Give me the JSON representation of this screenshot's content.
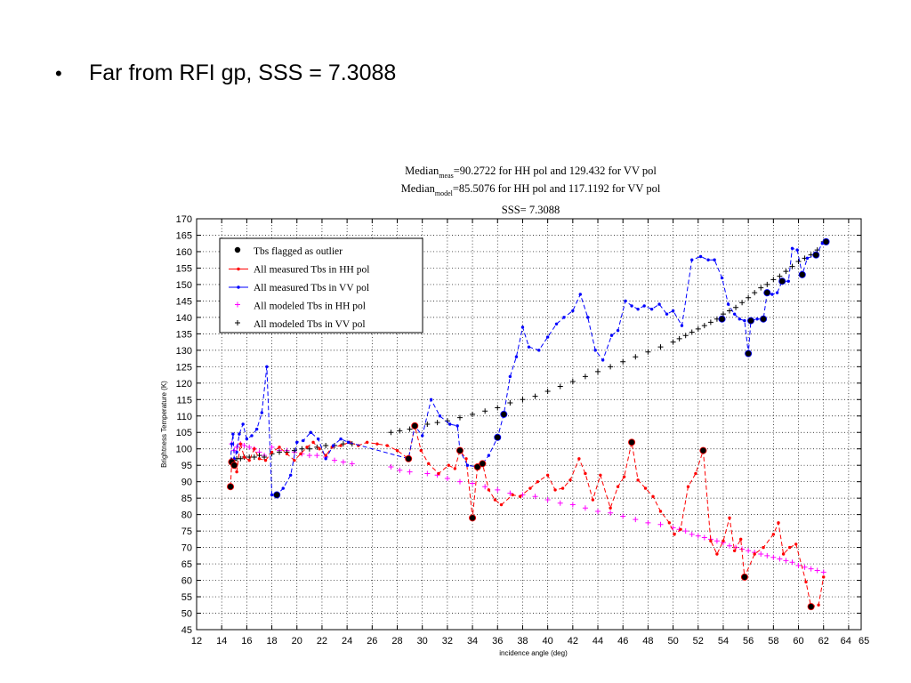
{
  "slide": {
    "bullet": "•",
    "text": "Far from RFI gp, SSS = 7.3088"
  },
  "chart_data": {
    "type": "line",
    "title_lines": [
      {
        "pre": "Median",
        "sub": "meas",
        "post": "=90.2722 for HH pol and 129.432 for VV pol"
      },
      {
        "pre": "Median",
        "sub": "model",
        "post": "=85.5076 for HH pol and 117.1192 for VV pol"
      },
      {
        "pre": "SSS= 7.3088",
        "sub": "",
        "post": ""
      }
    ],
    "xlabel": "incidence angle (deg)",
    "ylabel": "Brightness Temperature (K)",
    "xlim": [
      12,
      65
    ],
    "ylim": [
      45,
      170
    ],
    "xticks": [
      12,
      14,
      16,
      18,
      20,
      22,
      24,
      26,
      28,
      30,
      32,
      34,
      36,
      38,
      40,
      42,
      44,
      46,
      48,
      50,
      52,
      54,
      56,
      58,
      60,
      62,
      64,
      65
    ],
    "xtick_labels": [
      "12",
      "14",
      "16",
      "18",
      "20",
      "22",
      "24",
      "26",
      "28",
      "30",
      "32",
      "34",
      "36",
      "38",
      "40",
      "42",
      "44",
      "46",
      "48",
      "50",
      "52",
      "54",
      "56",
      "58",
      "60",
      "62",
      "64",
      "65"
    ],
    "yticks": [
      45,
      50,
      55,
      60,
      65,
      70,
      75,
      80,
      85,
      90,
      95,
      100,
      105,
      110,
      115,
      120,
      125,
      130,
      135,
      140,
      145,
      150,
      155,
      160,
      165,
      170
    ],
    "grid": true,
    "legend_position": "top-left",
    "colors": {
      "hh_meas": "#ff0000",
      "vv_meas": "#0000ff",
      "hh_model": "#ff00ff",
      "vv_model": "#000000",
      "outlier": "#000000"
    },
    "series": [
      {
        "name": "Tbs flagged as outlier",
        "kind": "outlier",
        "points": [
          [
            14.7,
            88.5
          ],
          [
            14.8,
            96
          ],
          [
            15.0,
            95
          ],
          [
            18.4,
            86
          ],
          [
            28.9,
            97
          ],
          [
            29.4,
            107
          ],
          [
            33.0,
            99.5
          ],
          [
            34.0,
            79
          ],
          [
            34.4,
            94.5
          ],
          [
            34.8,
            95.5
          ],
          [
            36.0,
            103.5
          ],
          [
            36.5,
            110.5
          ],
          [
            46.7,
            102
          ],
          [
            52.4,
            99.5
          ],
          [
            53.9,
            139.5
          ],
          [
            55.7,
            61
          ],
          [
            56.0,
            129
          ],
          [
            56.2,
            139
          ],
          [
            57.2,
            139.5
          ],
          [
            57.5,
            147.5
          ],
          [
            58.7,
            151
          ],
          [
            60.3,
            153
          ],
          [
            61.0,
            52
          ],
          [
            61.4,
            159
          ],
          [
            62.2,
            163
          ]
        ]
      },
      {
        "name": "All measured Tbs in HH pol",
        "kind": "line",
        "color": "#ff0000",
        "x": [
          14.7,
          14.8,
          15.0,
          15.2,
          15.5,
          15.8,
          16.2,
          16.6,
          17.0,
          17.5,
          18.0,
          18.6,
          19.2,
          19.8,
          20.3,
          20.8,
          21.3,
          21.8,
          22.3,
          22.8,
          23.5,
          24.2,
          24.9,
          25.6,
          26.4,
          27.2,
          28.0,
          28.9,
          29.4,
          29.9,
          30.5,
          31.3,
          32.1,
          32.6,
          33.0,
          33.5,
          34.0,
          34.4,
          34.8,
          35.3,
          35.8,
          36.3,
          37.2,
          37.8,
          38.6,
          39.2,
          40.0,
          40.6,
          41.2,
          41.8,
          42.5,
          43.0,
          43.6,
          44.2,
          45.0,
          45.6,
          46.1,
          46.7,
          47.2,
          47.8,
          48.4,
          49.0,
          49.7,
          50.1,
          50.6,
          51.2,
          51.8,
          52.4,
          53.0,
          53.5,
          54.0,
          54.5,
          54.9,
          55.4,
          55.7,
          56.5,
          57.2,
          58.0,
          58.4,
          58.8,
          59.3,
          59.8,
          60.6,
          61.0,
          61.6,
          62.0
        ],
        "y": [
          88.5,
          96,
          95,
          93,
          101.5,
          97.5,
          96.5,
          100,
          97,
          96.5,
          99,
          100.5,
          98.5,
          96.5,
          98.5,
          100.5,
          102,
          100,
          98,
          100.5,
          101,
          102,
          101,
          102,
          101.5,
          101,
          99.5,
          97,
          107,
          99.5,
          95.5,
          92.5,
          95,
          94,
          99.5,
          97,
          79,
          94.5,
          95.5,
          87.5,
          84.5,
          83,
          86,
          85.5,
          88,
          90,
          92,
          87.5,
          88,
          90.5,
          97,
          92.5,
          84.5,
          92,
          82,
          88.5,
          91.5,
          102,
          90.5,
          88,
          85.5,
          81,
          77.5,
          74,
          75.5,
          88.5,
          92.5,
          99.5,
          72,
          68,
          72,
          79,
          69,
          72.5,
          61,
          68,
          70,
          74,
          77.5,
          68,
          70,
          71,
          59.5,
          52,
          52.5,
          61
        ]
      },
      {
        "name": "All measured Tbs in VV pol",
        "kind": "line",
        "color": "#0000ff",
        "x": [
          14.7,
          14.8,
          14.9,
          15.0,
          15.2,
          15.4,
          15.7,
          16.0,
          16.4,
          16.8,
          17.2,
          17.6,
          18.0,
          18.4,
          18.9,
          19.5,
          20.0,
          20.5,
          21.1,
          21.7,
          22.3,
          22.9,
          23.5,
          24.1,
          28.9,
          29.4,
          30.0,
          30.7,
          31.4,
          32.2,
          32.8,
          33.0,
          33.6,
          34.4,
          34.8,
          35.3,
          36.0,
          36.5,
          37.0,
          37.5,
          38.0,
          38.5,
          39.3,
          40.0,
          40.7,
          41.3,
          42.0,
          42.6,
          43.2,
          43.8,
          44.4,
          45.1,
          45.6,
          46.2,
          46.7,
          47.2,
          47.7,
          48.3,
          48.9,
          49.5,
          50.0,
          50.7,
          51.5,
          52.2,
          52.8,
          53.3,
          53.9,
          54.4,
          54.9,
          55.3,
          55.7,
          56.0,
          56.2,
          56.7,
          57.2,
          57.5,
          57.9,
          58.3,
          58.7,
          59.2,
          59.5,
          59.9,
          60.3,
          60.7,
          61.4,
          61.9,
          62.2
        ],
        "y": [
          96,
          101.5,
          104.5,
          97,
          99,
          104.5,
          107.5,
          103,
          104,
          106,
          111,
          125,
          86,
          86,
          88,
          92,
          102,
          102.5,
          105,
          103,
          97,
          101,
          103,
          102,
          97,
          107,
          104,
          115,
          110,
          107.5,
          107,
          99.5,
          95,
          94.5,
          95.5,
          98,
          103.5,
          110.5,
          122,
          128,
          137,
          131,
          130,
          134,
          138,
          140,
          142,
          147,
          140,
          130,
          127,
          134.5,
          136,
          145,
          143.5,
          142.5,
          143.5,
          142.5,
          144,
          141,
          142,
          137.5,
          157.5,
          158.5,
          157.5,
          157.5,
          152,
          144,
          141,
          139.5,
          139,
          129,
          139,
          139.5,
          139.5,
          147.5,
          147,
          147.5,
          151,
          151,
          161,
          160.5,
          153,
          158,
          159,
          162.5,
          163
        ]
      },
      {
        "name": "All modeled Tbs in HH pol",
        "kind": "plus",
        "color": "#ff00ff",
        "x": [
          14.8,
          15.0,
          15.2,
          15.5,
          15.8,
          16.2,
          16.6,
          17.0,
          17.4,
          18.0,
          18.6,
          19.2,
          19.8,
          20.4,
          21.0,
          21.6,
          22.3,
          23.0,
          23.7,
          24.4,
          27.5,
          28.2,
          29.0,
          30.4,
          31.2,
          32.0,
          33.0,
          34.0,
          35.0,
          36.0,
          37.0,
          38.0,
          39.0,
          40.0,
          41.0,
          42.0,
          43.0,
          44.0,
          45.0,
          46.0,
          47.0,
          48.0,
          49.0,
          50.0,
          50.5,
          51.0,
          51.5,
          52.0,
          52.5,
          53.0,
          53.5,
          54.0,
          54.5,
          55.0,
          55.5,
          56.0,
          56.5,
          57.0,
          57.5,
          58.0,
          58.5,
          59.0,
          59.5,
          60.0,
          60.5,
          61.0,
          61.5,
          62.0
        ],
        "y": [
          101.5,
          99.5,
          100.5,
          101.5,
          101,
          100.5,
          100,
          99,
          98,
          100.5,
          99.5,
          99.5,
          99,
          98.5,
          98,
          98,
          97.5,
          96.5,
          96,
          95.5,
          94.5,
          93.5,
          93,
          92.5,
          92,
          91,
          90,
          89.5,
          88.5,
          87.5,
          86.5,
          86,
          85.5,
          84.5,
          83.5,
          83,
          82,
          81,
          80.5,
          79.5,
          78.5,
          77.5,
          77,
          76,
          75.5,
          75,
          74,
          73.5,
          73,
          72.5,
          72,
          71.5,
          70.5,
          70,
          69.5,
          69,
          68.5,
          68,
          67.5,
          67,
          66.5,
          66,
          65.5,
          64.5,
          64,
          63.5,
          63,
          62.5
        ]
      },
      {
        "name": "All modeled Tbs in VV pol",
        "kind": "plus",
        "color": "#000000",
        "x": [
          14.8,
          15.0,
          15.2,
          15.5,
          15.8,
          16.2,
          16.6,
          17.0,
          17.4,
          18.0,
          18.6,
          19.2,
          19.8,
          20.4,
          21.0,
          21.6,
          22.3,
          23.0,
          23.7,
          24.4,
          27.5,
          28.2,
          29.0,
          30.4,
          31.2,
          32.0,
          33.0,
          34.0,
          35.0,
          36.0,
          37.0,
          38.0,
          39.0,
          40.0,
          41.0,
          42.0,
          43.0,
          44.0,
          45.0,
          46.0,
          47.0,
          48.0,
          49.0,
          50.0,
          50.5,
          51.0,
          51.5,
          52.0,
          52.5,
          53.0,
          53.5,
          54.0,
          54.5,
          55.0,
          55.5,
          56.0,
          56.5,
          57.0,
          57.5,
          58.0,
          58.5,
          59.0,
          59.5,
          60.0,
          60.5,
          61.0,
          61.5,
          62.0
        ],
        "y": [
          96.5,
          96.5,
          97,
          97,
          97.5,
          97.5,
          97.5,
          98,
          97.5,
          98.5,
          99,
          99,
          99.5,
          100,
          100,
          100.5,
          101,
          101,
          101.5,
          101.5,
          105,
          105.5,
          106,
          107.5,
          108,
          108.5,
          109.5,
          110.5,
          111.5,
          112.5,
          114,
          115,
          116,
          117.5,
          119,
          120.5,
          122,
          123.5,
          125,
          126.5,
          128,
          129.5,
          131,
          132.5,
          133.5,
          134.5,
          135.5,
          136.5,
          137.5,
          138.5,
          139.5,
          141,
          142,
          143,
          144.5,
          146,
          147.5,
          149,
          150,
          151.5,
          152.5,
          154,
          155.5,
          157,
          158,
          159,
          160.5,
          163
        ]
      }
    ]
  }
}
